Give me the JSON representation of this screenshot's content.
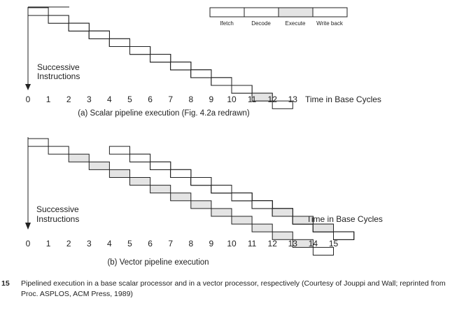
{
  "legend": {
    "stages": [
      "Ifetch",
      "Decode",
      "Execute",
      "Write back"
    ]
  },
  "diagram_a": {
    "ylabel": [
      "Successive",
      "Instructions"
    ],
    "tick_labels": [
      "0",
      "1",
      "2",
      "3",
      "4",
      "5",
      "6",
      "7",
      "8",
      "9",
      "10",
      "11",
      "12",
      "13"
    ],
    "xlabel": "Time in Base Cycles",
    "caption": "(a) Scalar pipeline execution (Fig. 4.2a redrawn)",
    "instructions": [
      {
        "start": 0
      },
      {
        "start": 1
      },
      {
        "start": 2
      },
      {
        "start": 3
      },
      {
        "start": 4
      },
      {
        "start": 5
      },
      {
        "start": 6
      },
      {
        "start": 7
      },
      {
        "start": 8
      },
      {
        "start": 9
      }
    ]
  },
  "diagram_b": {
    "ylabel": [
      "Successive",
      "Instructions"
    ],
    "tick_labels": [
      "0",
      "1",
      "2",
      "3",
      "4",
      "5",
      "6",
      "7",
      "8",
      "9",
      "10",
      "11",
      "12",
      "13",
      "14",
      "15"
    ],
    "xlabel": "Time in Base Cycles",
    "caption": "(b) Vector pipeline execution",
    "instructions": [
      {
        "start": 0,
        "execute_cycles": 12
      },
      {
        "start": 4,
        "execute_cycles": 9
      },
      {
        "start": 5,
        "execute_cycles": 8
      },
      {
        "start": 6,
        "execute_cycles": 7
      },
      {
        "start": 7,
        "execute_cycles": 6
      },
      {
        "start": 8,
        "execute_cycles": 5
      },
      {
        "start": 9,
        "execute_cycles": 4
      },
      {
        "start": 10,
        "execute_cycles": 3
      }
    ]
  },
  "colors": {
    "execute_fill": "#e4e4e4",
    "box_fill": "#ffffff",
    "stroke": "#222222"
  },
  "figure_caption": {
    "number": "15",
    "text": "Pipelined execution in a base scalar processor and in a vector processor, respectively (Courtesy of Jouppi and Wall; reprinted from Proc. ASPLOS, ACM Press, 1989)"
  }
}
